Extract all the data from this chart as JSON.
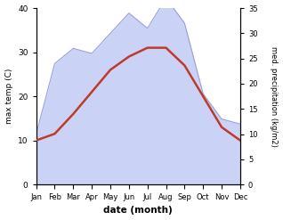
{
  "months": [
    "Jan",
    "Feb",
    "Mar",
    "Apr",
    "May",
    "Jun",
    "Jul",
    "Aug",
    "Sep",
    "Oct",
    "Nov",
    "Dec"
  ],
  "max_temp": [
    10,
    11.5,
    16,
    21,
    26,
    29,
    31,
    31,
    27,
    20,
    13,
    10
  ],
  "precipitation": [
    10,
    24,
    27,
    26,
    30,
    34,
    31,
    37,
    32,
    18,
    13,
    12
  ],
  "temp_color": "#c0392b",
  "precip_fill_color": "#c5cff5",
  "precip_fill_alpha": 0.9,
  "precip_line_color": "#9aa0d8",
  "temp_ylim": [
    0,
    40
  ],
  "precip_ylim": [
    0,
    35
  ],
  "temp_yticks": [
    0,
    10,
    20,
    30,
    40
  ],
  "precip_yticks": [
    0,
    5,
    10,
    15,
    20,
    25,
    30,
    35
  ],
  "xlabel": "date (month)",
  "ylabel_left": "max temp (C)",
  "ylabel_right": "med. precipitation (kg/m2)",
  "background_color": "#ffffff",
  "temp_linewidth": 1.8,
  "figsize": [
    3.18,
    2.47
  ],
  "dpi": 100
}
